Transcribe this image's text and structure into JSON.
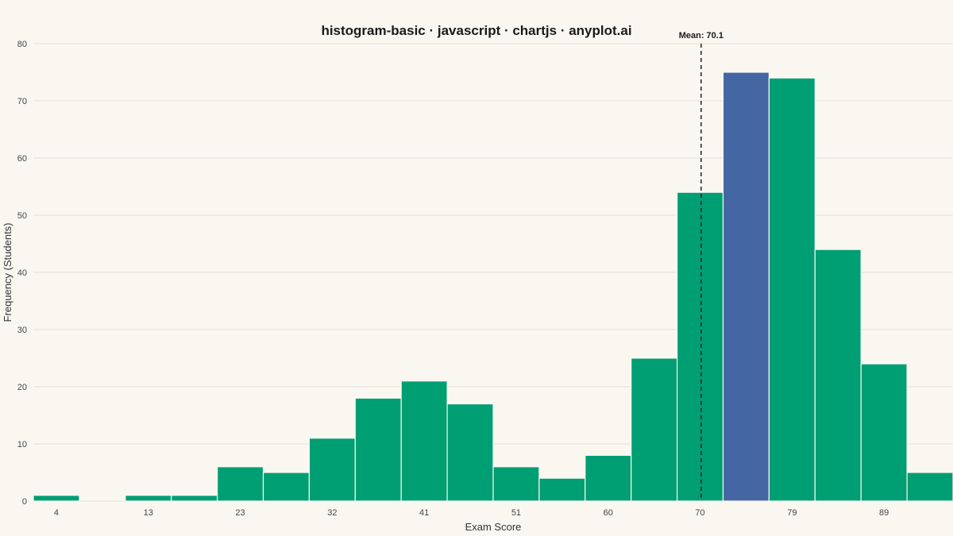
{
  "chart_data": {
    "type": "bar",
    "title": "histogram-basic · javascript · chartjs · anyplot.ai",
    "xlabel": "Exam Score",
    "ylabel": "Frequency (Students)",
    "ylim": [
      0,
      80
    ],
    "yticks": [
      0,
      10,
      20,
      30,
      40,
      50,
      60,
      70,
      80
    ],
    "xticks": [
      "4",
      "13",
      "23",
      "32",
      "41",
      "51",
      "60",
      "70",
      "79",
      "89"
    ],
    "grid": true,
    "values": [
      1,
      0,
      1,
      1,
      6,
      5,
      11,
      18,
      21,
      17,
      6,
      4,
      8,
      25,
      54,
      75,
      74,
      44,
      24,
      5
    ],
    "highlight_index": 15,
    "colors": {
      "bar": "#009E73",
      "highlight": "#4466A3",
      "mean_line": "#222222",
      "background": "#FAF7F1"
    },
    "mean": {
      "label": "Mean: 70.1",
      "value": 70.1
    }
  }
}
